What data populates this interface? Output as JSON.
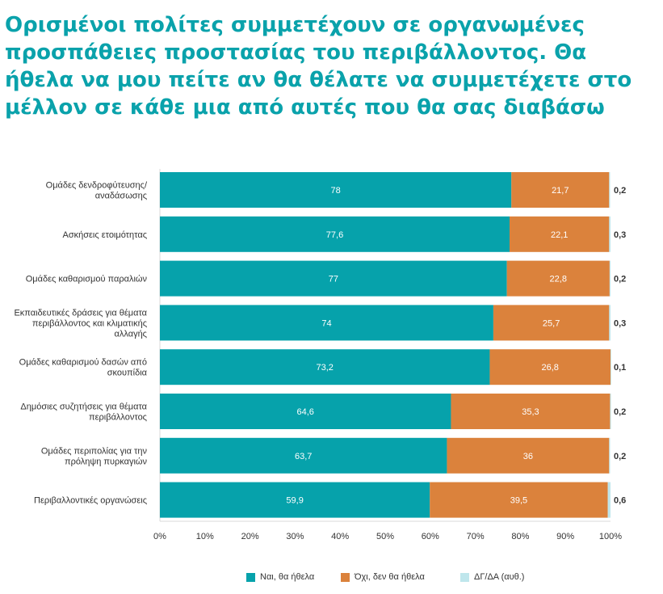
{
  "title": "Ορισμένοι πολίτες συμμετέχουν σε οργανωμένες προσπάθειες προστασίας του περιβάλλοντος. Θα ήθελα να μου πείτε αν θα θέλατε να συμμετέχετε στο μέλλον σε κάθε μια από αυτές που θα σας διαβάσω",
  "colors": {
    "title": "#0aa2ab",
    "yes": "#06a2ab",
    "no": "#db823c",
    "dk": "#bfe6ec"
  },
  "chart_data": {
    "type": "bar",
    "orientation": "horizontal",
    "stacked": true,
    "categories": [
      [
        "Ομάδες δενδροφύτευσης/",
        "αναδάσωσης"
      ],
      [
        "Ασκήσεις ετοιμότητας"
      ],
      [
        "Ομάδες καθαρισμού παραλιών"
      ],
      [
        "Εκπαιδευτικές δράσεις για θέματα",
        "περιβάλλοντος και κλιματικής",
        "αλλαγής"
      ],
      [
        "Ομάδες καθαρισμού δασών από",
        "σκουπίδια"
      ],
      [
        "Δημόσιες συζητήσεις για θέματα",
        "περιβάλλοντος"
      ],
      [
        "Ομάδες περιπολίας για την",
        "πρόληψη πυρκαγιών"
      ],
      [
        "Περιβαλλοντικές οργανώσεις"
      ]
    ],
    "series": [
      {
        "name": "Ναι, θα ήθελα",
        "values": [
          78,
          77.6,
          77,
          74,
          73.2,
          64.6,
          63.7,
          59.9
        ],
        "labels": [
          "78",
          "77,6",
          "77",
          "74",
          "73,2",
          "64,6",
          "63,7",
          "59,9"
        ]
      },
      {
        "name": "Όχι, δεν θα ήθελα",
        "values": [
          21.7,
          22.1,
          22.8,
          25.7,
          26.8,
          35.3,
          36,
          39.5
        ],
        "labels": [
          "21,7",
          "22,1",
          "22,8",
          "25,7",
          "26,8",
          "35,3",
          "36",
          "39,5"
        ]
      },
      {
        "name": "ΔΓ/ΔΑ (αυθ.)",
        "values": [
          0.2,
          0.3,
          0.2,
          0.3,
          0.1,
          0.2,
          0.2,
          0.6
        ],
        "labels": [
          "0,2",
          "0,3",
          "0,2",
          "0,3",
          "0,1",
          "0,2",
          "0,2",
          "0,6"
        ]
      }
    ],
    "xlim": [
      0,
      100
    ],
    "xticks": [
      "0%",
      "10%",
      "20%",
      "30%",
      "40%",
      "50%",
      "60%",
      "70%",
      "80%",
      "90%",
      "100%"
    ],
    "legend_position": "bottom"
  }
}
